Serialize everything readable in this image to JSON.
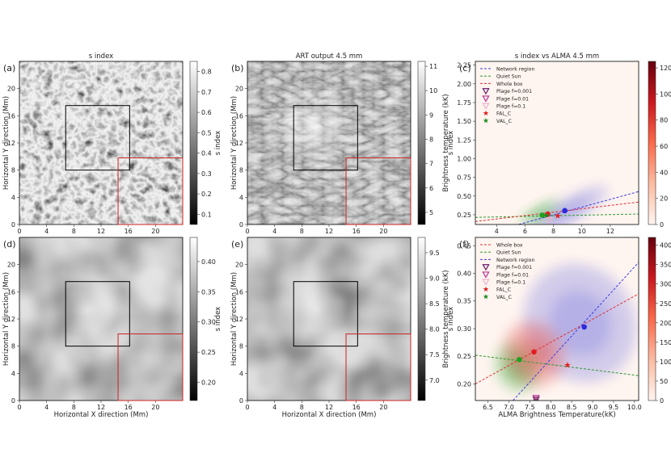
{
  "chart_data": [
    {
      "id": "a",
      "type": "heatmap",
      "panel_label": "(a)",
      "title": "s index",
      "xlabel": "",
      "ylabel": "Horizontal Y direction (Mm)",
      "xlim": [
        0,
        24
      ],
      "ylim": [
        0,
        24
      ],
      "xticks": [
        "0",
        "4",
        "8",
        "12",
        "16",
        "20"
      ],
      "yticks": [
        "0",
        "4",
        "8",
        "12",
        "16",
        "20"
      ],
      "colorbar": {
        "label": "s index",
        "ticks": [
          "0.1",
          "0.2",
          "0.3",
          "0.4",
          "0.5",
          "0.6",
          "0.7",
          "0.8"
        ],
        "range": [
          0.05,
          0.85
        ],
        "colormap": "gray"
      },
      "boxes": [
        {
          "color": "#000000",
          "x": [
            6.8,
            16.2
          ],
          "y": [
            8,
            17.5
          ]
        },
        {
          "color": "#cc2222",
          "x": [
            14.5,
            24
          ],
          "y": [
            0,
            9.8
          ]
        }
      ]
    },
    {
      "id": "b",
      "type": "heatmap",
      "panel_label": "(b)",
      "title": "ART output 4.5 mm",
      "xlabel": "",
      "ylabel": "Horizontal Y direction (Mm)",
      "xlim": [
        0,
        24
      ],
      "ylim": [
        0,
        24
      ],
      "xticks": [
        "0",
        "4",
        "8",
        "12",
        "16",
        "20"
      ],
      "yticks": [
        "0",
        "4",
        "8",
        "12",
        "16",
        "20"
      ],
      "colorbar": {
        "label": "Brightness temperature (kK)",
        "ticks": [
          "5",
          "6",
          "7",
          "8",
          "9",
          "10",
          "11"
        ],
        "range": [
          4.5,
          11.2
        ],
        "colormap": "gray"
      },
      "boxes": [
        {
          "color": "#000000",
          "x": [
            6.8,
            16.2
          ],
          "y": [
            8,
            17.5
          ]
        },
        {
          "color": "#cc2222",
          "x": [
            14.5,
            24
          ],
          "y": [
            0,
            9.8
          ]
        }
      ]
    },
    {
      "id": "c",
      "type": "scatter",
      "panel_label": "(c)",
      "title": "s index vs ALMA 4.5 mm",
      "xlabel": "",
      "ylabel": "s index",
      "xlim": [
        2.5,
        14
      ],
      "ylim": [
        0.12,
        2.3
      ],
      "xticks": [
        4,
        6,
        8,
        10,
        12
      ],
      "yticks": [
        "0.25",
        "0.50",
        "0.75",
        "1.00",
        "1.25",
        "1.50",
        "1.75",
        "2.00",
        "2.25"
      ],
      "legend_position": "top-left",
      "legend": [
        {
          "label": "Network region",
          "kind": "dash",
          "color": "#3a3ae0"
        },
        {
          "label": "Quiet Sun",
          "kind": "dash",
          "color": "#2e9a2e"
        },
        {
          "label": "Whole box",
          "kind": "dash",
          "color": "#e03030"
        },
        {
          "label": "Plage f=0.001",
          "kind": "tri",
          "color": "#6a1a6a"
        },
        {
          "label": "Plage f=0.01",
          "kind": "tri",
          "color": "#c03090"
        },
        {
          "label": "Plage f=0.1",
          "kind": "tri",
          "color": "#f0b0d0"
        },
        {
          "label": "FAL_C",
          "kind": "star",
          "color": "#e02020"
        },
        {
          "label": "VAL_C",
          "kind": "star",
          "color": "#208a20"
        }
      ],
      "fit_lines": [
        {
          "name": "Network region",
          "color": "#3a3ae0",
          "points": [
            [
              4.2,
              0.05
            ],
            [
              14,
              0.56
            ]
          ]
        },
        {
          "name": "Quiet Sun",
          "color": "#2e9a2e",
          "points": [
            [
              2.5,
              0.215
            ],
            [
              14,
              0.26
            ]
          ]
        },
        {
          "name": "Whole box",
          "color": "#e03030",
          "points": [
            [
              2.5,
              0.16
            ],
            [
              14,
              0.42
            ]
          ]
        }
      ],
      "points": [
        {
          "name": "Network region",
          "x": 8.8,
          "y": 0.305,
          "color": "#2a2ae0",
          "marker": "circle"
        },
        {
          "name": "Whole box",
          "x": 7.6,
          "y": 0.26,
          "color": "#e02020",
          "marker": "circle"
        },
        {
          "name": "Quiet Sun",
          "x": 7.2,
          "y": 0.245,
          "color": "#20a020",
          "marker": "circle"
        },
        {
          "name": "FAL_C",
          "x": 8.3,
          "y": 0.235,
          "color": "#e02020",
          "marker": "star"
        },
        {
          "name": "VAL_C",
          "x": 7.5,
          "y": 0.24,
          "color": "#208a20",
          "marker": "star"
        },
        {
          "name": "Plage f=0.1",
          "x": 7.7,
          "y": 0.18,
          "color": "#f0b0d0",
          "marker": "tri"
        }
      ],
      "density_regions": [
        {
          "name": "Network region",
          "color": "#7a7ae0",
          "cx": 9.0,
          "cy": 0.3,
          "rx": 3.2,
          "ry": 0.16
        },
        {
          "name": "Quiet Sun",
          "color": "#40b040",
          "cx": 7.0,
          "cy": 0.27,
          "rx": 1.6,
          "ry": 0.1
        }
      ],
      "colorbar": {
        "label": "",
        "ticks": [
          "0",
          "20",
          "40",
          "60",
          "80",
          "100",
          "120"
        ],
        "range": [
          0,
          125
        ],
        "colormap": "reds"
      }
    },
    {
      "id": "d",
      "type": "heatmap",
      "panel_label": "(d)",
      "title": "",
      "xlabel": "Horizontal X direction (Mm)",
      "ylabel": "Horizontal Y direction (Mm)",
      "xlim": [
        0,
        24
      ],
      "ylim": [
        0,
        24
      ],
      "xticks": [
        "0",
        "4",
        "8",
        "12",
        "16",
        "20"
      ],
      "yticks": [
        "0",
        "4",
        "8",
        "12",
        "16",
        "20"
      ],
      "colorbar": {
        "label": "s index",
        "ticks": [
          "0.20",
          "0.25",
          "0.30",
          "0.35",
          "0.40"
        ],
        "range": [
          0.17,
          0.44
        ],
        "colormap": "gray"
      },
      "boxes": [
        {
          "color": "#000000",
          "x": [
            6.8,
            16.2
          ],
          "y": [
            8,
            17.5
          ]
        },
        {
          "color": "#cc2222",
          "x": [
            14.5,
            24
          ],
          "y": [
            0,
            9.8
          ]
        }
      ]
    },
    {
      "id": "e",
      "type": "heatmap",
      "panel_label": "(e)",
      "title": "",
      "xlabel": "Horizontal X direction (Mm)",
      "ylabel": "Horizontal Y direction (Mm)",
      "xlim": [
        0,
        24
      ],
      "ylim": [
        0,
        24
      ],
      "xticks": [
        "0",
        "4",
        "8",
        "12",
        "16",
        "20"
      ],
      "yticks": [
        "0",
        "4",
        "8",
        "12",
        "16",
        "20"
      ],
      "colorbar": {
        "label": "Brightness temperature (kK)",
        "ticks": [
          "7.0",
          "7.5",
          "8.0",
          "8.5",
          "9.0",
          "9.5"
        ],
        "range": [
          6.6,
          9.8
        ],
        "colormap": "gray"
      },
      "boxes": [
        {
          "color": "#000000",
          "x": [
            6.8,
            16.2
          ],
          "y": [
            8,
            17.5
          ]
        },
        {
          "color": "#cc2222",
          "x": [
            14.5,
            24
          ],
          "y": [
            0,
            9.8
          ]
        }
      ]
    },
    {
      "id": "f",
      "type": "scatter",
      "panel_label": "(f)",
      "title": "",
      "xlabel": "ALMA Brightness Temperature(kK)",
      "ylabel": "s index",
      "xlim": [
        6.2,
        10.1
      ],
      "ylim": [
        0.17,
        0.465
      ],
      "xticks": [
        "6.5",
        "7.0",
        "7.5",
        "8.0",
        "8.5",
        "9.0",
        "9.5",
        "10.0"
      ],
      "yticks": [
        "0.20",
        "0.25",
        "0.30",
        "0.35",
        "0.40",
        "0.45"
      ],
      "legend_position": "top-left",
      "legend": [
        {
          "label": "Whole box",
          "kind": "dash",
          "color": "#e03030"
        },
        {
          "label": "Quiet Sun",
          "kind": "dash",
          "color": "#2e9a2e"
        },
        {
          "label": "Network region",
          "kind": "dash",
          "color": "#3a3ae0"
        },
        {
          "label": "Plage f=0.001",
          "kind": "tri",
          "color": "#6a1a6a"
        },
        {
          "label": "Plage f=0.01",
          "kind": "tri",
          "color": "#c03090"
        },
        {
          "label": "Plage f=0.1",
          "kind": "tri",
          "color": "#f0b0d0"
        },
        {
          "label": "FAL_C",
          "kind": "star",
          "color": "#e02020"
        },
        {
          "label": "VAL_C",
          "kind": "star",
          "color": "#208a20"
        }
      ],
      "fit_lines": [
        {
          "name": "Whole box",
          "color": "#e03030",
          "points": [
            [
              6.2,
              0.2
            ],
            [
              10.1,
              0.363
            ]
          ]
        },
        {
          "name": "Quiet Sun",
          "color": "#2e9a2e",
          "points": [
            [
              6.2,
              0.252
            ],
            [
              10.1,
              0.215
            ]
          ]
        },
        {
          "name": "Network region",
          "color": "#3a3ae0",
          "points": [
            [
              7.1,
              0.17
            ],
            [
              10.1,
              0.42
            ]
          ]
        }
      ],
      "points": [
        {
          "name": "Network region",
          "x": 8.8,
          "y": 0.303,
          "color": "#2a2ae0",
          "marker": "circle"
        },
        {
          "name": "Whole box",
          "x": 7.6,
          "y": 0.258,
          "color": "#e02020",
          "marker": "circle"
        },
        {
          "name": "Quiet Sun",
          "x": 7.25,
          "y": 0.244,
          "color": "#20a020",
          "marker": "circle"
        },
        {
          "name": "FAL_C",
          "x": 8.4,
          "y": 0.234,
          "color": "#e02020",
          "marker": "star"
        },
        {
          "name": "VAL_C",
          "x": 7.65,
          "y": 0.17,
          "color": "#208a20",
          "marker": "star"
        },
        {
          "name": "Plage f=0.001",
          "x": 7.65,
          "y": 0.172,
          "color": "#6a1a6a",
          "marker": "tri"
        },
        {
          "name": "Plage f=0.01",
          "x": 7.65,
          "y": 0.175,
          "color": "#c03090",
          "marker": "tri"
        }
      ],
      "density_regions": [
        {
          "name": "Network region",
          "color": "#8080e0",
          "cx": 8.7,
          "cy": 0.31,
          "rx": 1.3,
          "ry": 0.11
        },
        {
          "name": "Quiet Sun",
          "color": "#40b040",
          "cx": 7.2,
          "cy": 0.23,
          "rx": 0.5,
          "ry": 0.045
        },
        {
          "name": "Whole box",
          "color": "#e05050",
          "cx": 7.6,
          "cy": 0.255,
          "rx": 0.7,
          "ry": 0.06
        }
      ],
      "colorbar": {
        "label": "",
        "ticks": [
          "0",
          "50",
          "100",
          "150",
          "200",
          "250",
          "300",
          "350",
          "400"
        ],
        "range": [
          0,
          420
        ],
        "colormap": "reds"
      }
    }
  ]
}
